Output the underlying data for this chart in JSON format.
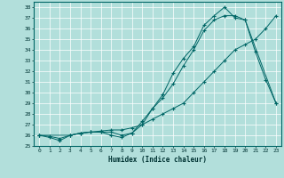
{
  "xlabel": "Humidex (Indice chaleur)",
  "ylabel": "",
  "xlim": [
    -0.5,
    23.5
  ],
  "ylim": [
    25,
    38.5
  ],
  "yticks": [
    25,
    26,
    27,
    28,
    29,
    30,
    31,
    32,
    33,
    34,
    35,
    36,
    37,
    38
  ],
  "xticks": [
    0,
    1,
    2,
    3,
    4,
    5,
    6,
    7,
    8,
    9,
    10,
    11,
    12,
    13,
    14,
    15,
    16,
    17,
    18,
    19,
    20,
    21,
    22,
    23
  ],
  "background_color": "#b2dfdb",
  "grid_color": "#ffffff",
  "line_color": "#006666",
  "line1_x": [
    0,
    1,
    2,
    3,
    4,
    5,
    6,
    7,
    8,
    9,
    10,
    11,
    12,
    13,
    14,
    15,
    16,
    17,
    18,
    19,
    20,
    21,
    22,
    23
  ],
  "line1_y": [
    26,
    25.8,
    25.5,
    26,
    26.2,
    26.3,
    26.3,
    26.0,
    25.8,
    26.2,
    27.3,
    28.5,
    29.5,
    30.8,
    32.5,
    34.0,
    35.8,
    36.8,
    37.2,
    37.2,
    36.8,
    33.8,
    31.2,
    29.0
  ],
  "line2_x": [
    0,
    1,
    2,
    3,
    4,
    5,
    6,
    7,
    8,
    9,
    10,
    11,
    12,
    13,
    14,
    15,
    16,
    17,
    18,
    19,
    20,
    21,
    22,
    23
  ],
  "line2_y": [
    26,
    25.9,
    25.7,
    26,
    26.2,
    26.3,
    26.4,
    26.5,
    26.5,
    26.7,
    27.0,
    27.5,
    28.0,
    28.5,
    29.0,
    30.0,
    31.0,
    32.0,
    33.0,
    34.0,
    34.5,
    35.0,
    36.0,
    37.2
  ],
  "line3_x": [
    0,
    3,
    4,
    5,
    6,
    7,
    8,
    9,
    10,
    11,
    12,
    13,
    14,
    15,
    16,
    17,
    18,
    19,
    20,
    23
  ],
  "line3_y": [
    26,
    26,
    26.2,
    26.3,
    26.3,
    26.3,
    26.0,
    26.2,
    27.0,
    28.5,
    29.8,
    31.8,
    33.2,
    34.3,
    36.3,
    37.2,
    38.0,
    37.0,
    36.8,
    29.0
  ]
}
